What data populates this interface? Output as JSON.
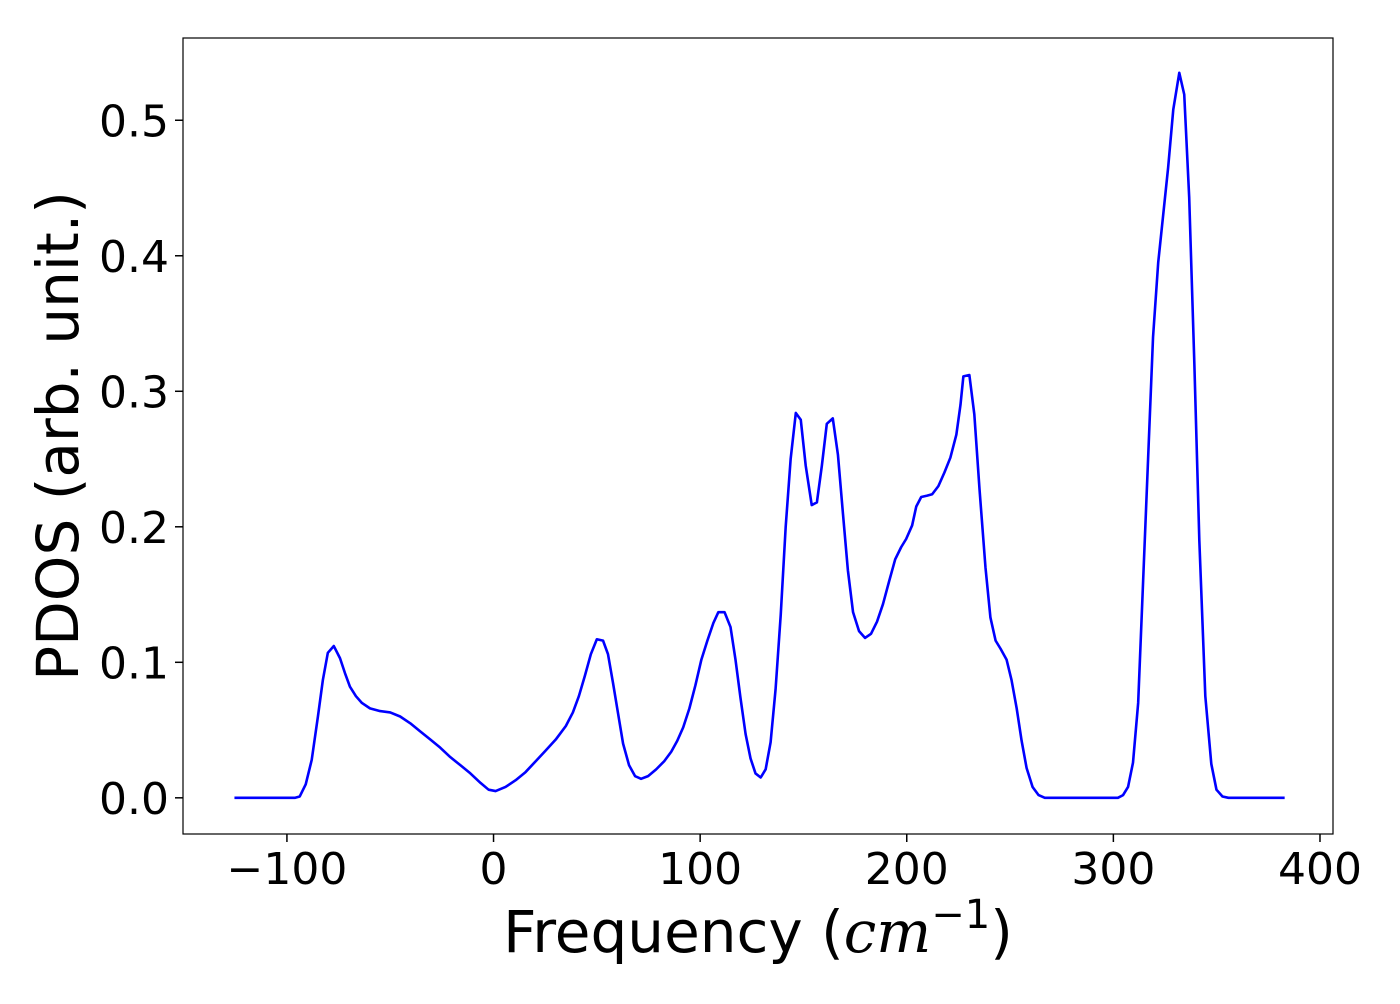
{
  "chart_data": {
    "type": "line",
    "xlabel": [
      "Frequency (",
      "cm",
      "−1",
      ")"
    ],
    "ylabel": "PDOS (arb. unit.)",
    "xlim": [
      -150.3,
      406.3
    ],
    "ylim": [
      -0.0267,
      0.5607
    ],
    "xticks": [
      {
        "value": -100,
        "label": "−100"
      },
      0,
      100,
      200,
      300,
      400
    ],
    "yticks": [
      {
        "value": 0,
        "label": "0.0"
      },
      0.1,
      0.2,
      0.3,
      0.4,
      0.5
    ],
    "grid": false,
    "x": [
      -125.4,
      -96.2,
      -93.8,
      -90.9,
      -88,
      -85,
      -82.6,
      -80.2,
      -77.3,
      -74.3,
      -71.9,
      -69.5,
      -66.6,
      -63.7,
      -59.8,
      -54.9,
      -50,
      -45.2,
      -40.3,
      -35.5,
      -30.6,
      -25.8,
      -20.9,
      -16,
      -11.2,
      -6.3,
      -2.4,
      1,
      5.8,
      10.7,
      15.5,
      20.4,
      25.3,
      30.1,
      35,
      38.4,
      41.3,
      44.2,
      47.1,
      50,
      53,
      55.4,
      57.8,
      60.3,
      62.7,
      65.6,
      68.5,
      71.4,
      74.8,
      78.7,
      82.6,
      86,
      88.9,
      91.8,
      94.8,
      97.7,
      100.6,
      103.5,
      106.4,
      108.8,
      111.8,
      114.7,
      117.1,
      119.5,
      122,
      124.4,
      126.8,
      129.3,
      131.7,
      134.1,
      136.5,
      139,
      141.4,
      143.8,
      146.3,
      148.7,
      151.1,
      154,
      156.5,
      158.9,
      161.3,
      164.2,
      166.7,
      169.1,
      171.5,
      174,
      176.9,
      179.8,
      182.7,
      185.6,
      188.5,
      191.5,
      194.4,
      197.3,
      199.7,
      202.6,
      204.6,
      207,
      209.9,
      212.3,
      215.3,
      218.2,
      221.1,
      224,
      226,
      227.4,
      230.3,
      232.7,
      235.2,
      238.1,
      240.5,
      243,
      245.4,
      248.3,
      250.7,
      253.2,
      255.6,
      258,
      260.9,
      263.8,
      266.8,
      302.2,
      304.7,
      307.1,
      309.5,
      312,
      314.4,
      316.8,
      319.2,
      321.7,
      324.1,
      326.5,
      329,
      331.9,
      334.3,
      336.7,
      339.2,
      341.6,
      344.5,
      347.4,
      349.9,
      352.8,
      355.7,
      382.9
    ],
    "series": [
      {
        "name": "PDOS",
        "color": "#0000ff",
        "values": [
          0,
          0,
          0.001,
          0.01,
          0.028,
          0.06,
          0.087,
          0.107,
          0.112,
          0.103,
          0.092,
          0.082,
          0.075,
          0.07,
          0.066,
          0.064,
          0.063,
          0.06,
          0.055,
          0.049,
          0.043,
          0.037,
          0.03,
          0.024,
          0.018,
          0.011,
          0.006,
          0.005,
          0.008,
          0.013,
          0.019,
          0.027,
          0.035,
          0.043,
          0.053,
          0.063,
          0.075,
          0.09,
          0.106,
          0.117,
          0.116,
          0.106,
          0.085,
          0.062,
          0.04,
          0.024,
          0.016,
          0.014,
          0.016,
          0.021,
          0.027,
          0.034,
          0.042,
          0.052,
          0.066,
          0.083,
          0.102,
          0.116,
          0.129,
          0.137,
          0.137,
          0.126,
          0.102,
          0.074,
          0.047,
          0.029,
          0.018,
          0.015,
          0.021,
          0.041,
          0.08,
          0.135,
          0.2,
          0.25,
          0.284,
          0.279,
          0.245,
          0.216,
          0.218,
          0.245,
          0.276,
          0.28,
          0.253,
          0.21,
          0.168,
          0.137,
          0.123,
          0.118,
          0.121,
          0.13,
          0.143,
          0.16,
          0.176,
          0.185,
          0.191,
          0.201,
          0.215,
          0.222,
          0.223,
          0.224,
          0.23,
          0.24,
          0.251,
          0.268,
          0.29,
          0.311,
          0.312,
          0.283,
          0.228,
          0.17,
          0.133,
          0.116,
          0.11,
          0.102,
          0.087,
          0.066,
          0.042,
          0.022,
          0.008,
          0.002,
          0,
          0,
          0.002,
          0.008,
          0.026,
          0.07,
          0.16,
          0.25,
          0.34,
          0.395,
          0.43,
          0.465,
          0.508,
          0.535,
          0.519,
          0.443,
          0.32,
          0.19,
          0.075,
          0.025,
          0.006,
          0.001,
          0,
          0
        ]
      }
    ]
  }
}
